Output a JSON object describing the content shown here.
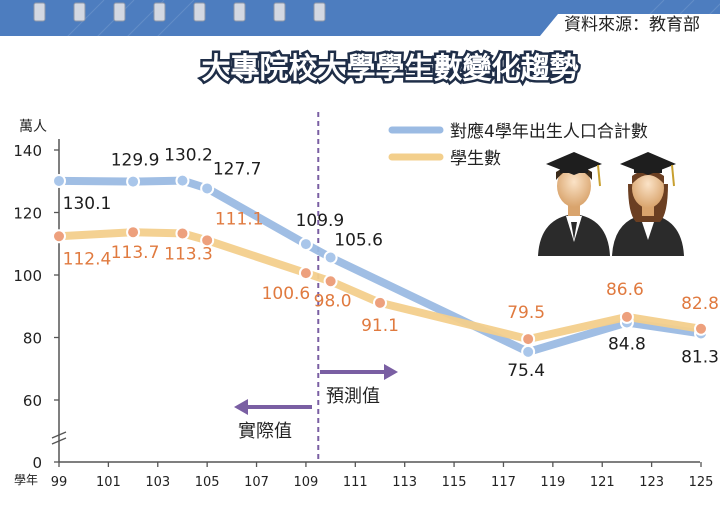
{
  "source": "資料來源：教育部",
  "chart_data": {
    "type": "line",
    "title": "大專院校大學學生數變化趨勢",
    "y_unit_label": "萬人",
    "x_unit_label": "學年",
    "x_ticks": [
      99,
      101,
      103,
      105,
      107,
      109,
      111,
      113,
      115,
      117,
      119,
      121,
      123,
      125
    ],
    "y_ticks": [
      0,
      60,
      80,
      100,
      120,
      140
    ],
    "xlim": [
      99,
      125
    ],
    "ylim": [
      0,
      150
    ],
    "y_axis_break": true,
    "grid": false,
    "legend_position": "top-right",
    "series": [
      {
        "name": "對應4學年出生人口合計數",
        "color": "#9bbbe3",
        "marker_color": "#a9c6ea",
        "points": [
          {
            "x": 99,
            "y": 130.1
          },
          {
            "x": 102,
            "y": 129.9
          },
          {
            "x": 104,
            "y": 130.2
          },
          {
            "x": 105,
            "y": 127.7
          },
          {
            "x": 109,
            "y": 109.9
          },
          {
            "x": 110,
            "y": 105.6
          },
          {
            "x": 118,
            "y": 75.4
          },
          {
            "x": 122,
            "y": 84.8
          },
          {
            "x": 125,
            "y": 81.3
          }
        ]
      },
      {
        "name": "學生數",
        "color": "#f3cf8c",
        "marker_color": "#eda07d",
        "points": [
          {
            "x": 99,
            "y": 112.4
          },
          {
            "x": 102,
            "y": 113.7
          },
          {
            "x": 104,
            "y": 113.3
          },
          {
            "x": 105,
            "y": 111.1
          },
          {
            "x": 109,
            "y": 100.6
          },
          {
            "x": 110,
            "y": 98.0
          },
          {
            "x": 112,
            "y": 91.1
          },
          {
            "x": 118,
            "y": 79.5
          },
          {
            "x": 122,
            "y": 86.6
          },
          {
            "x": 125,
            "y": 82.8
          }
        ]
      }
    ],
    "annotations": {
      "divider_x": 109.5,
      "forecast_label": "預測值",
      "actual_label": "實際值"
    }
  }
}
